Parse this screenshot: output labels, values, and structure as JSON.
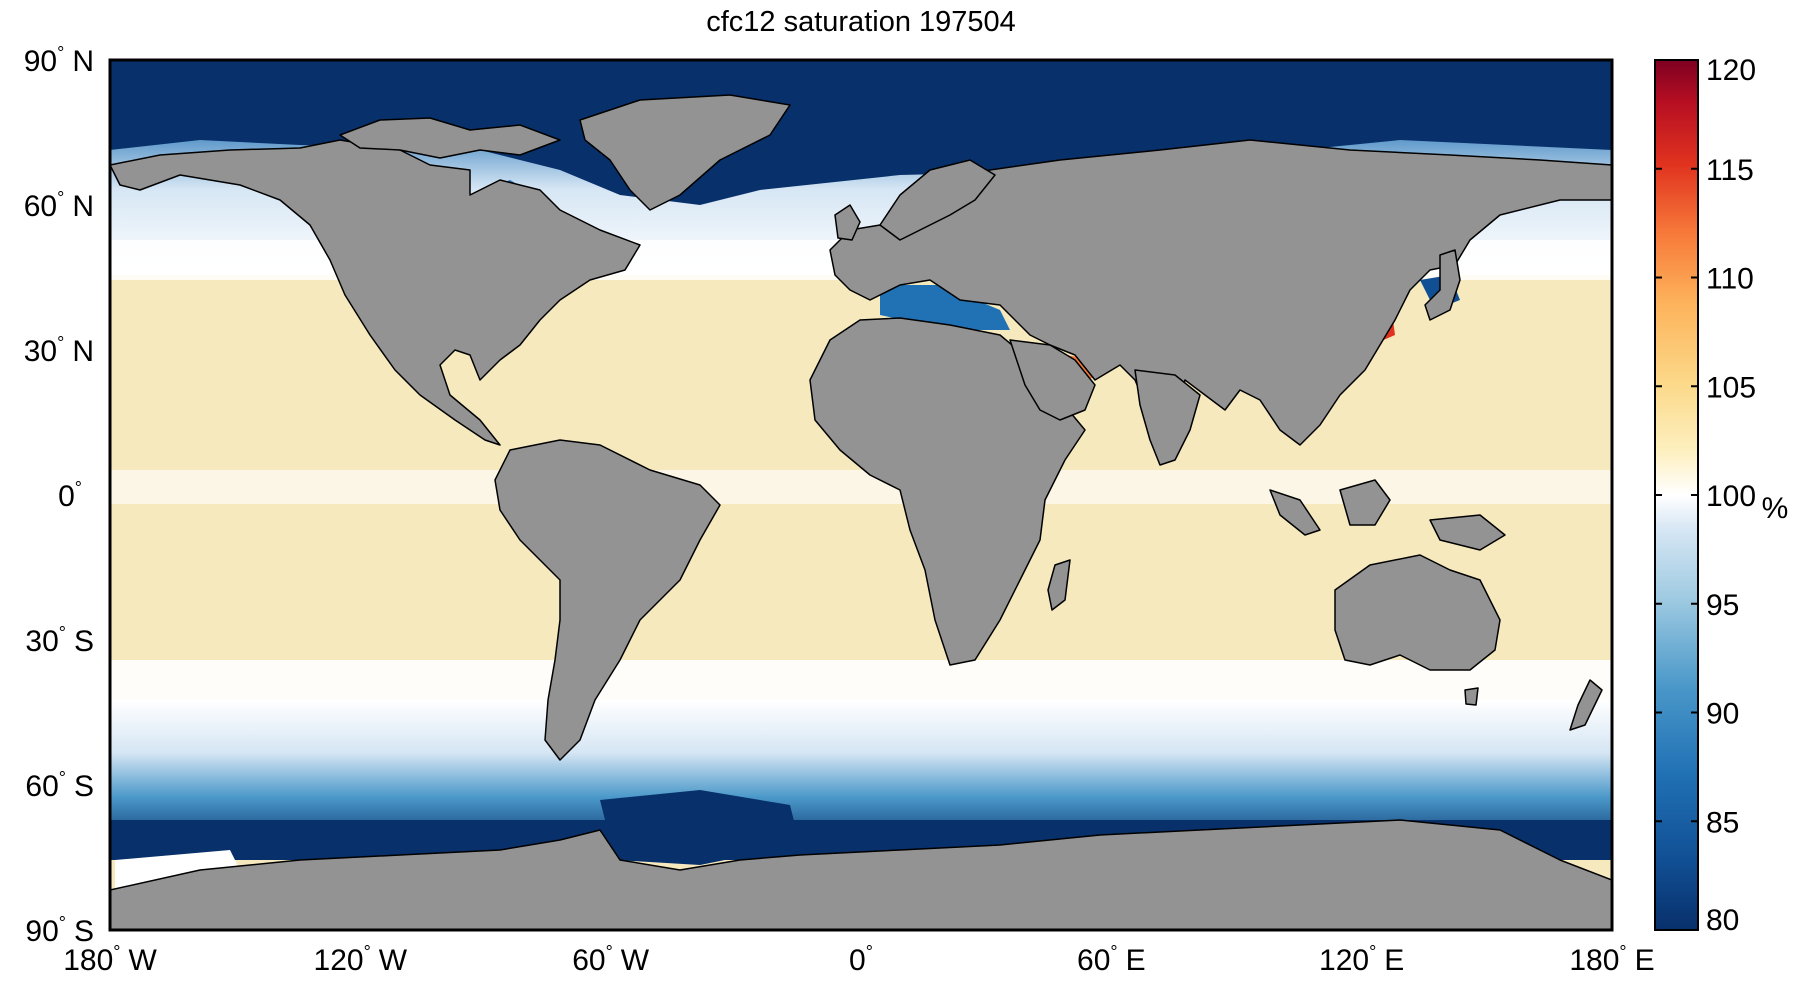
{
  "title": "cfc12 saturation 197504",
  "map": {
    "projection": "equirectangular",
    "lon_range": [
      -180,
      180
    ],
    "lat_range": [
      -90,
      90
    ],
    "ocean_color": "#f5e9bd",
    "land_color": "#939393",
    "coast_color": "#000000",
    "lat_ticks": [
      {
        "value": 90,
        "num": "90",
        "hemi": "N"
      },
      {
        "value": 60,
        "num": "60",
        "hemi": "N"
      },
      {
        "value": 30,
        "num": "30",
        "hemi": "N"
      },
      {
        "value": 0,
        "num": "0",
        "hemi": ""
      },
      {
        "value": -30,
        "num": "30",
        "hemi": "S"
      },
      {
        "value": -60,
        "num": "60",
        "hemi": "S"
      },
      {
        "value": -90,
        "num": "90",
        "hemi": "S"
      }
    ],
    "lon_ticks": [
      {
        "value": -180,
        "num": "180",
        "hemi": "W"
      },
      {
        "value": -120,
        "num": "120",
        "hemi": "W"
      },
      {
        "value": -60,
        "num": "60",
        "hemi": "W"
      },
      {
        "value": 0,
        "num": "0",
        "hemi": ""
      },
      {
        "value": 60,
        "num": "60",
        "hemi": "E"
      },
      {
        "value": 120,
        "num": "120",
        "hemi": "E"
      },
      {
        "value": 180,
        "num": "180",
        "hemi": "E"
      }
    ],
    "degree_symbol": "°"
  },
  "colorbar": {
    "min": 80,
    "max": 120,
    "ticks": [
      "80",
      "85",
      "90",
      "95",
      "100",
      "105",
      "110",
      "115",
      "120"
    ],
    "unit": "%",
    "colors": [
      "#08306b",
      "#114f94",
      "#2171b5",
      "#4a98c9",
      "#9ecae1",
      "#d6e6f4",
      "#ffffff",
      "#fdf0c0",
      "#fcd888",
      "#fdb35b",
      "#f77a3a",
      "#e0331f",
      "#b80f22",
      "#7e0021"
    ]
  }
}
